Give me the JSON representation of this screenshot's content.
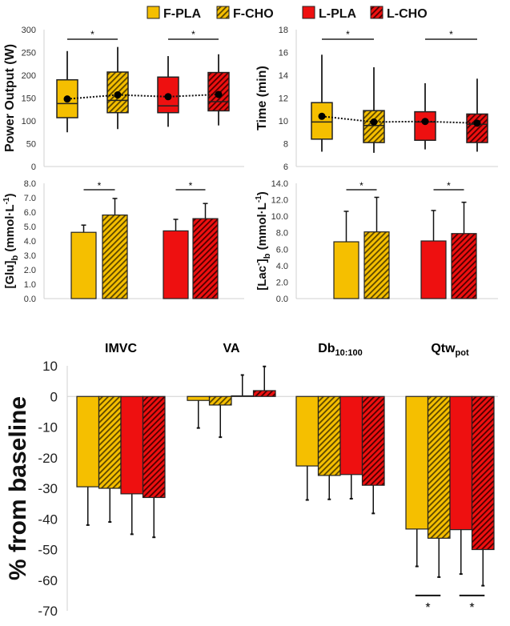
{
  "colors": {
    "yellow": "#F5BF00",
    "red": "#EE1010",
    "stripe_yellow": "#5a4500",
    "stripe_red": "#4a0000",
    "edge": "#222222"
  },
  "legend": [
    {
      "label": "F-PLA",
      "color": "yellow",
      "hatched": false
    },
    {
      "label": "F-CHO",
      "color": "yellow",
      "hatched": true
    },
    {
      "label": "L-PLA",
      "color": "red",
      "hatched": false
    },
    {
      "label": "L-CHO",
      "color": "red",
      "hatched": true
    }
  ],
  "chart_data": [
    {
      "id": "power",
      "type": "box",
      "ylabel": "Power Output (W)",
      "ylim": [
        0,
        300
      ],
      "ticks": [
        0,
        50,
        100,
        150,
        200,
        250,
        300
      ],
      "tick_decimals": 0,
      "series": [
        {
          "name": "F-PLA",
          "min": 75,
          "q1": 107,
          "median": 138,
          "q3": 190,
          "max": 253,
          "mean": 148
        },
        {
          "name": "F-CHO",
          "min": 82,
          "q1": 118,
          "median": 145,
          "q3": 207,
          "max": 262,
          "mean": 157
        },
        {
          "name": "L-PLA",
          "min": 87,
          "q1": 118,
          "median": 133,
          "q3": 196,
          "max": 242,
          "mean": 153
        },
        {
          "name": "L-CHO",
          "min": 90,
          "q1": 122,
          "median": 142,
          "q3": 206,
          "max": 246,
          "mean": 158
        }
      ],
      "significance": [
        {
          "pair": [
            0,
            1
          ],
          "label": "*"
        },
        {
          "pair": [
            2,
            3
          ],
          "label": "*"
        }
      ]
    },
    {
      "id": "time",
      "type": "box",
      "ylabel": "Time (min)",
      "ylim": [
        6,
        18
      ],
      "ticks": [
        6,
        8,
        10,
        12,
        14,
        16,
        18
      ],
      "tick_decimals": 0,
      "series": [
        {
          "name": "F-PLA",
          "min": 7.3,
          "q1": 8.4,
          "median": 9.9,
          "q3": 11.6,
          "max": 15.8,
          "mean": 10.4
        },
        {
          "name": "F-CHO",
          "min": 7.2,
          "q1": 8.1,
          "median": 9.6,
          "q3": 10.9,
          "max": 14.7,
          "mean": 9.9
        },
        {
          "name": "L-PLA",
          "min": 7.5,
          "q1": 8.3,
          "median": 9.9,
          "q3": 10.8,
          "max": 13.3,
          "mean": 9.95
        },
        {
          "name": "L-CHO",
          "min": 7.3,
          "q1": 8.1,
          "median": 9.7,
          "q3": 10.6,
          "max": 13.7,
          "mean": 9.8
        }
      ],
      "significance": [
        {
          "pair": [
            0,
            1
          ],
          "label": "*"
        },
        {
          "pair": [
            2,
            3
          ],
          "label": "*"
        }
      ]
    },
    {
      "id": "glu",
      "type": "bar",
      "ylabel": "[Glu]",
      "ylabel_sub": "b",
      "ylabel_unit": " (mmol·L",
      "ylabel_sup": "-1",
      "ylabel_end": ")",
      "ylim": [
        0,
        8
      ],
      "ticks": [
        0,
        1,
        2,
        3,
        4,
        5,
        6,
        7,
        8
      ],
      "tick_decimals": 1,
      "values": [
        4.6,
        5.8,
        4.7,
        5.55
      ],
      "errors_to": [
        5.1,
        6.95,
        5.5,
        6.6
      ],
      "significance": [
        {
          "pair": [
            0,
            1
          ],
          "label": "*"
        },
        {
          "pair": [
            2,
            3
          ],
          "label": "*"
        }
      ]
    },
    {
      "id": "lac",
      "type": "bar",
      "ylabel": "[Lac",
      "ylabel_sup0": "-",
      "ylabel_mid": "]",
      "ylabel_sub": "b",
      "ylabel_unit": " (mmol·L",
      "ylabel_sup": "-1",
      "ylabel_end": ")",
      "ylim": [
        0,
        14
      ],
      "ticks": [
        0,
        2,
        4,
        6,
        8,
        10,
        12,
        14
      ],
      "tick_decimals": 1,
      "values": [
        6.9,
        8.1,
        7.0,
        7.9
      ],
      "errors_to": [
        10.6,
        12.3,
        10.7,
        11.7
      ],
      "significance": [
        {
          "pair": [
            0,
            1
          ],
          "label": "*"
        },
        {
          "pair": [
            2,
            3
          ],
          "label": "*"
        }
      ]
    },
    {
      "id": "baseline",
      "type": "bar",
      "ylabel": "% from baseline",
      "ylim": [
        -70,
        10
      ],
      "ticks": [
        10,
        0,
        -10,
        -20,
        -30,
        -40,
        -50,
        -60,
        -70
      ],
      "tick_decimals": 0,
      "categories": [
        {
          "label": "IMVC",
          "sub": ""
        },
        {
          "label": "VA",
          "sub": ""
        },
        {
          "label": "Db",
          "sub": "10:100"
        },
        {
          "label": "Qtw",
          "sub": "pot"
        }
      ],
      "series": [
        {
          "name": "F-PLA",
          "values": [
            -29.5,
            -1.3,
            -22.7,
            -43.3
          ],
          "errors_to": [
            -42,
            -10.3,
            -33.8,
            -55.5
          ]
        },
        {
          "name": "F-CHO",
          "values": [
            -30,
            -2.8,
            -25.8,
            -46.3
          ],
          "errors_to": [
            -41,
            -13.3,
            -33.6,
            -59
          ]
        },
        {
          "name": "L-PLA",
          "values": [
            -31.8,
            0.2,
            -25.5,
            -43.5
          ],
          "errors_to": [
            -45,
            7,
            -33.4,
            -58
          ]
        },
        {
          "name": "L-CHO",
          "values": [
            -33,
            1.9,
            -29,
            -50
          ],
          "errors_to": [
            -46,
            9.8,
            -38.2,
            -61.8
          ]
        }
      ],
      "significance": [
        {
          "category": 3,
          "pair": [
            0,
            1
          ],
          "label": "*"
        },
        {
          "category": 3,
          "pair": [
            2,
            3
          ],
          "label": "*"
        }
      ]
    }
  ]
}
